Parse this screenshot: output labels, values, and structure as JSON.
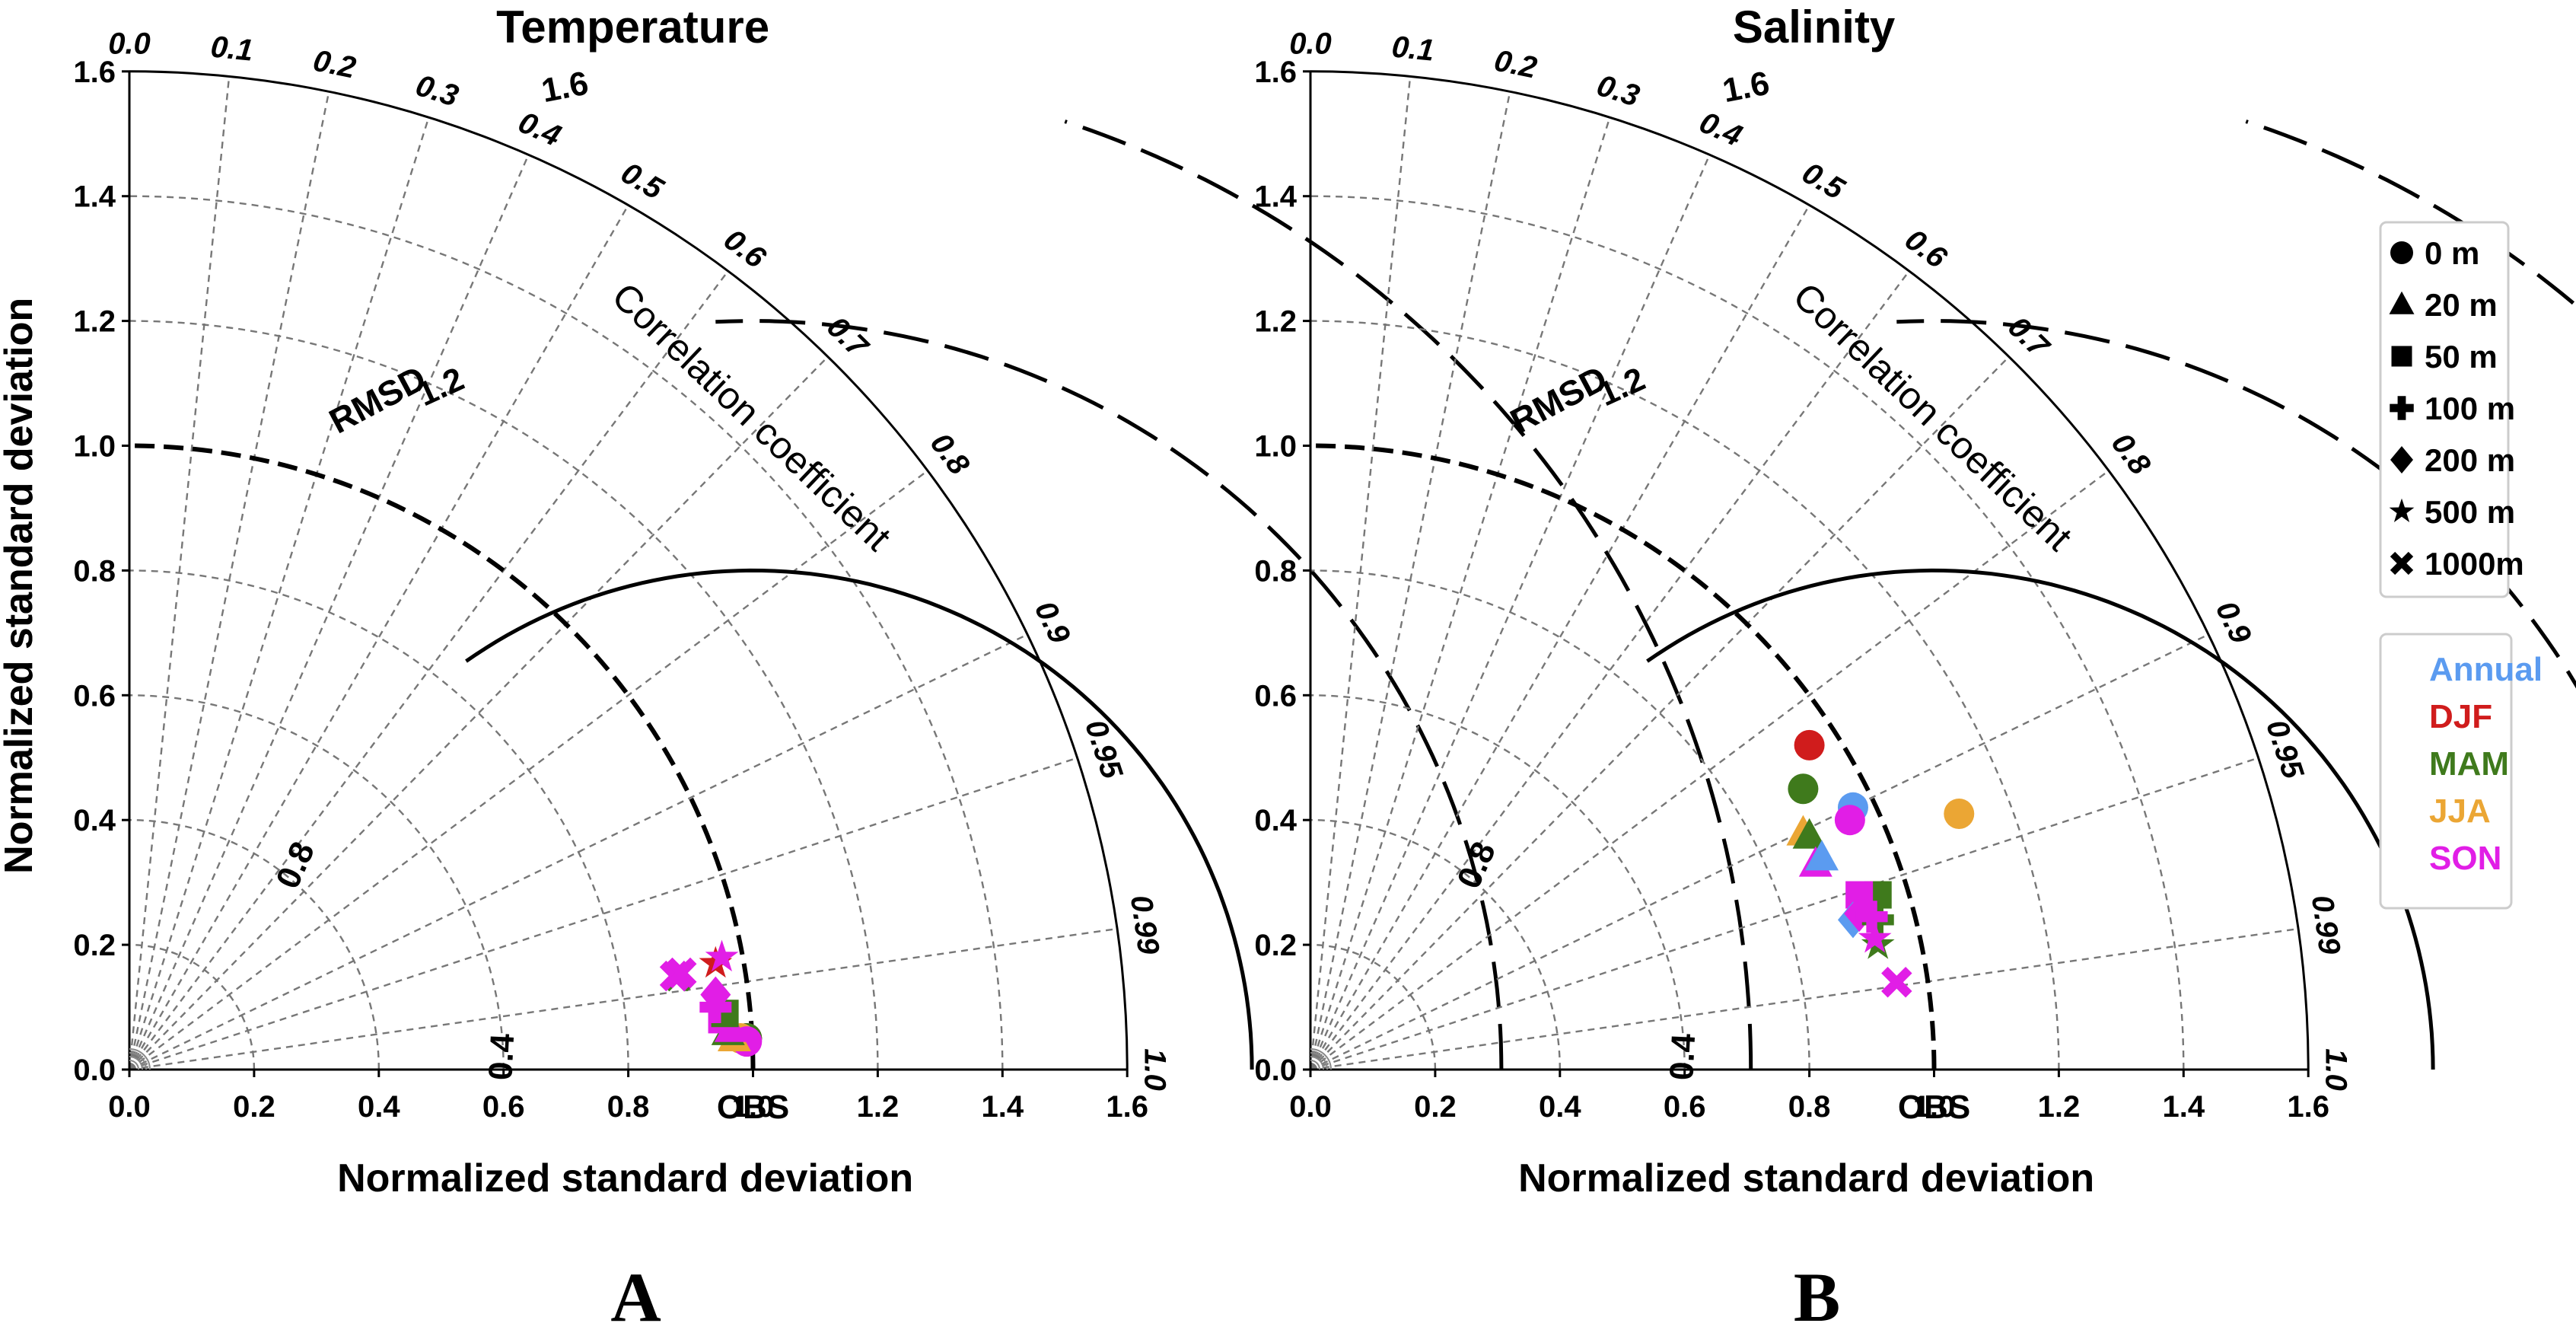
{
  "chart_data": [
    {
      "type": "taylor",
      "panel_label": "A",
      "title": "Temperature",
      "xlabel": "Normalized standard deviation",
      "ylabel": "Normalized standard deviation",
      "corr_label": "Correlation coefficient",
      "rmsd_label": "RMSD",
      "obs_label": "OBS",
      "std_range": [
        0,
        1.6
      ],
      "std_ticks": [
        "0.0",
        "0.2",
        "0.4",
        "0.6",
        "0.8",
        "1.0",
        "1.2",
        "1.4",
        "1.6"
      ],
      "corr_ticks": [
        "0.0",
        "0.1",
        "0.2",
        "0.3",
        "0.4",
        "0.5",
        "0.6",
        "0.7",
        "0.8",
        "0.9",
        "0.95",
        "0.99",
        "1.0"
      ],
      "rmsd_arcs": [
        0.4,
        0.8,
        1.2,
        1.6
      ],
      "rmsd_labels": [
        "0.4",
        "0.8",
        "1.2",
        "1.6"
      ],
      "points": [
        {
          "season": "Annual",
          "depth": "0 m",
          "x": 0.99,
          "y": 0.05
        },
        {
          "season": "DJF",
          "depth": "0 m",
          "x": 0.99,
          "y": 0.05
        },
        {
          "season": "MAM",
          "depth": "0 m",
          "x": 0.99,
          "y": 0.05
        },
        {
          "season": "JJA",
          "depth": "0 m",
          "x": 0.98,
          "y": 0.05
        },
        {
          "season": "SON",
          "depth": "0 m",
          "x": 0.99,
          "y": 0.045
        },
        {
          "season": "JJA",
          "depth": "20 m",
          "x": 0.97,
          "y": 0.05
        },
        {
          "season": "MAM",
          "depth": "20 m",
          "x": 0.96,
          "y": 0.06
        },
        {
          "season": "SON",
          "depth": "20 m",
          "x": 0.965,
          "y": 0.065
        },
        {
          "season": "SON",
          "depth": "50 m",
          "x": 0.95,
          "y": 0.08
        },
        {
          "season": "MAM",
          "depth": "50 m",
          "x": 0.955,
          "y": 0.09
        },
        {
          "season": "SON",
          "depth": "100 m",
          "x": 0.94,
          "y": 0.1
        },
        {
          "season": "SON",
          "depth": "200 m",
          "x": 0.94,
          "y": 0.12
        },
        {
          "season": "DJF",
          "depth": "500 m",
          "x": 0.94,
          "y": 0.17
        },
        {
          "season": "SON",
          "depth": "500 m",
          "x": 0.95,
          "y": 0.18
        },
        {
          "season": "MAM",
          "depth": "1000 m",
          "x": 0.88,
          "y": 0.15
        },
        {
          "season": "SON",
          "depth": "1000 m",
          "x": 0.875,
          "y": 0.15
        },
        {
          "season": "SON",
          "depth": "1000 m",
          "x": 0.885,
          "y": 0.155
        }
      ]
    },
    {
      "type": "taylor",
      "panel_label": "B",
      "title": "Salinity",
      "xlabel": "Normalized standard deviation",
      "ylabel": "Normalized standard deviation",
      "corr_label": "Correlation coefficient",
      "rmsd_label": "RMSD",
      "obs_label": "OBS",
      "std_range": [
        0,
        1.6
      ],
      "std_ticks": [
        "0.0",
        "0.2",
        "0.4",
        "0.6",
        "0.8",
        "1.0",
        "1.2",
        "1.4",
        "1.6"
      ],
      "corr_ticks": [
        "0.0",
        "0.1",
        "0.2",
        "0.3",
        "0.4",
        "0.5",
        "0.6",
        "0.7",
        "0.8",
        "0.9",
        "0.95",
        "0.99",
        "1.0"
      ],
      "rmsd_arcs": [
        0.4,
        0.8,
        1.2,
        1.6
      ],
      "rmsd_labels": [
        "0.4",
        "0.8",
        "1.2",
        "1.6"
      ],
      "points": [
        {
          "season": "DJF",
          "depth": "0 m",
          "x": 0.8,
          "y": 0.52
        },
        {
          "season": "MAM",
          "depth": "0 m",
          "x": 0.79,
          "y": 0.45
        },
        {
          "season": "Annual",
          "depth": "0 m",
          "x": 0.87,
          "y": 0.42
        },
        {
          "season": "JJA",
          "depth": "0 m",
          "x": 1.04,
          "y": 0.41
        },
        {
          "season": "SON",
          "depth": "0 m",
          "x": 0.865,
          "y": 0.4
        },
        {
          "season": "JJA",
          "depth": "20 m",
          "x": 0.79,
          "y": 0.38
        },
        {
          "season": "MAM",
          "depth": "20 m",
          "x": 0.8,
          "y": 0.375
        },
        {
          "season": "SON",
          "depth": "20 m",
          "x": 0.81,
          "y": 0.33
        },
        {
          "season": "Annual",
          "depth": "20 m",
          "x": 0.82,
          "y": 0.34
        },
        {
          "season": "MAM",
          "depth": "50 m",
          "x": 0.91,
          "y": 0.28
        },
        {
          "season": "SON",
          "depth": "50 m",
          "x": 0.88,
          "y": 0.28
        },
        {
          "season": "Annual",
          "depth": "200 m",
          "x": 0.87,
          "y": 0.24
        },
        {
          "season": "SON",
          "depth": "200 m",
          "x": 0.88,
          "y": 0.25
        },
        {
          "season": "MAM",
          "depth": "100 m",
          "x": 0.91,
          "y": 0.24
        },
        {
          "season": "SON",
          "depth": "100 m",
          "x": 0.9,
          "y": 0.245
        },
        {
          "season": "MAM",
          "depth": "500 m",
          "x": 0.91,
          "y": 0.2
        },
        {
          "season": "SON",
          "depth": "500 m",
          "x": 0.905,
          "y": 0.21
        },
        {
          "season": "SON",
          "depth": "1000 m",
          "x": 0.94,
          "y": 0.14
        }
      ]
    }
  ],
  "legend": {
    "markers": [
      {
        "label": "0 m",
        "shape": "circle"
      },
      {
        "label": "20 m",
        "shape": "triangle"
      },
      {
        "label": "50 m",
        "shape": "square"
      },
      {
        "label": "100 m",
        "shape": "plus"
      },
      {
        "label": "200 m",
        "shape": "diamond"
      },
      {
        "label": "500 m",
        "shape": "star"
      },
      {
        "label": "1000m",
        "shape": "cross"
      }
    ],
    "seasons": [
      {
        "label": "Annual",
        "color": "#5b9bf0"
      },
      {
        "label": "DJF",
        "color": "#d01c1c"
      },
      {
        "label": "MAM",
        "color": "#3f7a1c"
      },
      {
        "label": "JJA",
        "color": "#eba634"
      },
      {
        "label": "SON",
        "color": "#e11ee6"
      }
    ]
  },
  "depth_shapes": {
    "0 m": "circle",
    "20 m": "triangle",
    "50 m": "square",
    "100 m": "plus",
    "200 m": "diamond",
    "500 m": "star",
    "1000 m": "cross"
  }
}
